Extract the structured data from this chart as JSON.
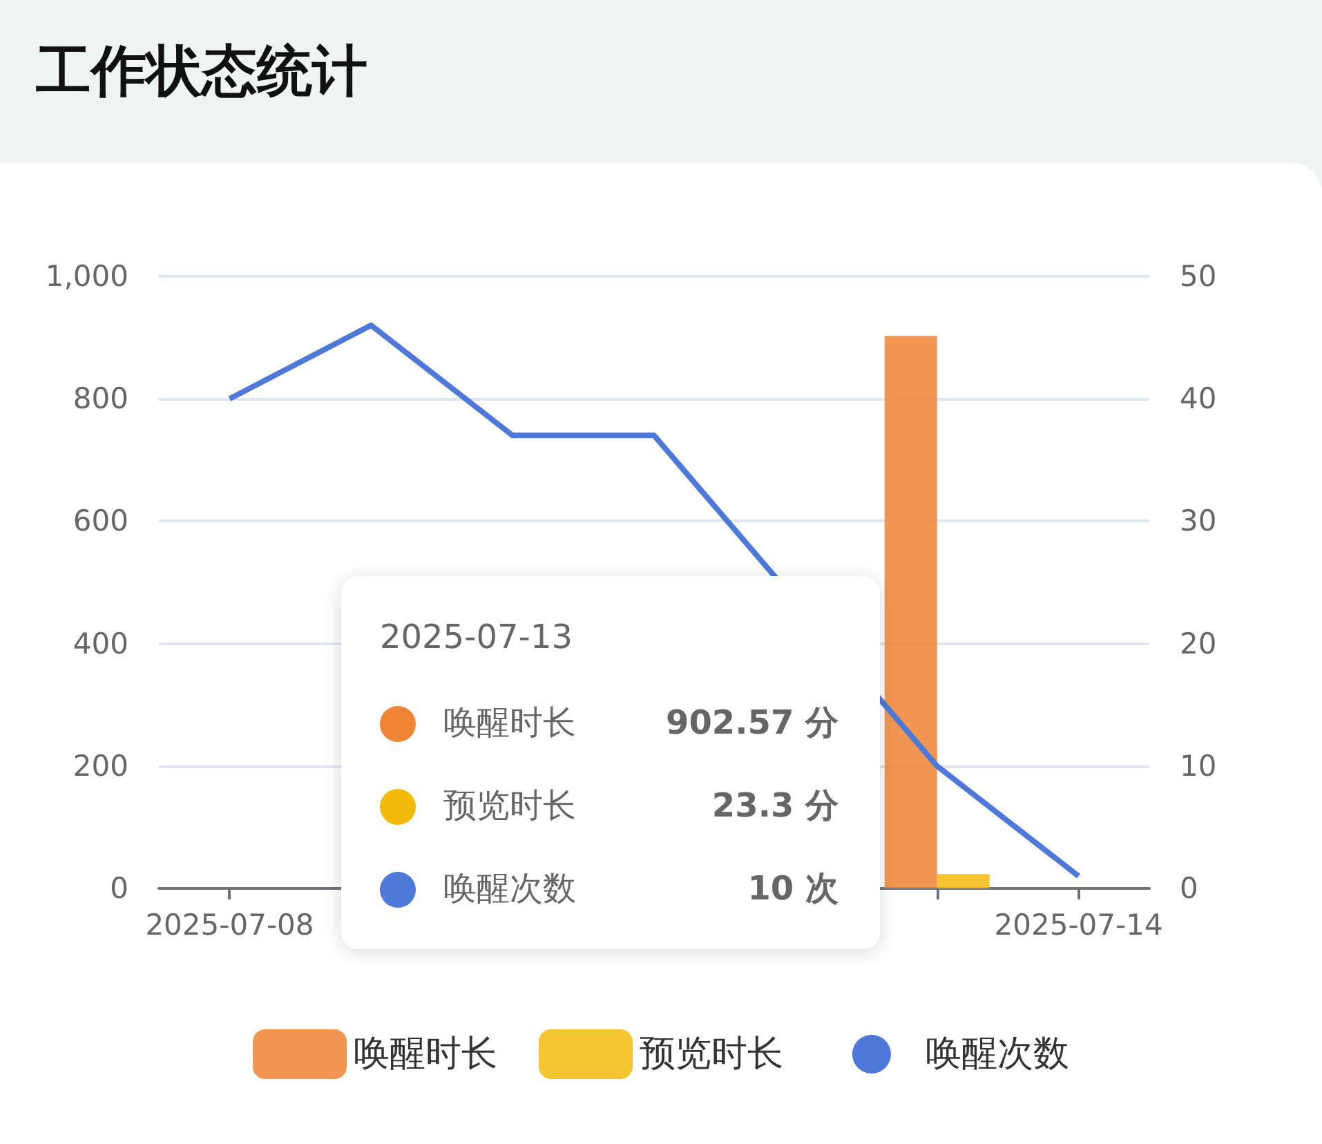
{
  "chart_data": {
    "type": "bar",
    "title": "工作状态统计",
    "categories": [
      "2025-07-08",
      null,
      null,
      null,
      null,
      null,
      "2025-07-14"
    ],
    "series": [
      {
        "name": "唤醒时长",
        "color": "#ee8434",
        "values": [
          0,
          null,
          null,
          null,
          null,
          902.57,
          0
        ]
      },
      {
        "name": "预览时长",
        "color": "#f2bb0c",
        "values": [
          0,
          null,
          null,
          null,
          null,
          23.3,
          0
        ]
      },
      {
        "name": "唤醒次数",
        "type": "line",
        "axis": "y2",
        "color": "#4f79d9",
        "values": [
          40,
          46,
          37,
          37,
          null,
          10,
          1
        ]
      }
    ],
    "ylim": [
      0,
      1000
    ],
    "yticks": [
      0,
      200,
      400,
      600,
      800,
      {
        "value": 1000,
        "label": "1,000"
      }
    ],
    "y2lim": [
      0,
      50
    ],
    "y2ticks": [
      0,
      10,
      20,
      30,
      40,
      50
    ],
    "grid": "y",
    "legend": "bottom",
    "marker": "none",
    "line_style": "solid",
    "annotations": [
      "2025-07-13",
      "902.57 分",
      "23.3 分",
      "10 次"
    ]
  }
}
